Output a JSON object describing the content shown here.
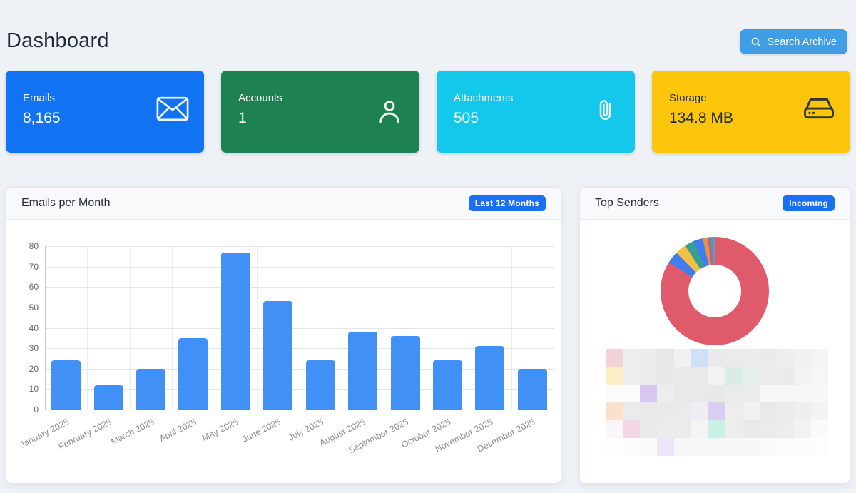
{
  "page": {
    "title": "Dashboard",
    "background": "#eef2f7"
  },
  "header": {
    "search_button": {
      "label": "Search Archive",
      "icon": "search-icon",
      "color": "#3f9ee6"
    }
  },
  "stat_cards": [
    {
      "label": "Emails",
      "value": "8,165",
      "icon": "envelope-icon",
      "bg": "#1173f2",
      "text": "#ffffff"
    },
    {
      "label": "Accounts",
      "value": "1",
      "icon": "person-icon",
      "bg": "#1e8152",
      "text": "#ffffff"
    },
    {
      "label": "Attachments",
      "value": "505",
      "icon": "paperclip-icon",
      "bg": "#13c8ea",
      "text": "#ffffff"
    },
    {
      "label": "Storage",
      "value": "134.8 MB",
      "icon": "drive-icon",
      "bg": "#fec60a",
      "text": "#212b36"
    }
  ],
  "emails_panel": {
    "title": "Emails per Month",
    "badge": "Last 12 Months",
    "badge_color": "#1a6ff2"
  },
  "senders_panel": {
    "title": "Top Senders",
    "badge": "Incoming",
    "badge_color": "#1a6ff2",
    "legend_mosaic": {
      "cols": 13,
      "rows": [
        [
          "#f2d1d7",
          "#ededee",
          "#ebebec",
          "#e7e7e9",
          "#f1f1f2",
          "#cfe0f7",
          "#eaeaec",
          "#ebebed",
          "#ebebed",
          "#eaeaeb",
          "#eeeeef",
          "#f1f1f2",
          "#f4f4f5"
        ],
        [
          "#fbedc4",
          "#ededed",
          "#ebebeb",
          "#e8e8ea",
          "#eaeaeb",
          "#e9e9ea",
          "#f2f2f2",
          "#d9ece7",
          "#e4efeb",
          "#ebebec",
          "#eaeaeb",
          "#f2f2f3",
          "#f6f6f6"
        ],
        [
          "#fbfbfb",
          "#fcfcfc",
          "#d8c8f1",
          "#ededee",
          "#e9e9ea",
          "#e9e9eb",
          "#e8e8ea",
          "#ebebec",
          "#ececec",
          "#f6f6f7",
          "#f6f6f7",
          "#f7f7f7",
          "#f8f8f8"
        ],
        [
          "#fde0c9",
          "#ebebeb",
          "#e9e9e9",
          "#eaeaeb",
          "#ebebec",
          "#efeef7",
          "#dbccf1",
          "#ededee",
          "#f1f1f1",
          "#e9e9ea",
          "#ececed",
          "#efeff0",
          "#f3f3f4"
        ],
        [
          "#faf5f7",
          "#f4d7e6",
          "#e9e9ea",
          "#ececec",
          "#ebebeb",
          "#f4f4f4",
          "#c9f0e5",
          "#ededee",
          "#e9e9ea",
          "#ebebec",
          "#ededee",
          "#f2f2f2",
          "#fafafa"
        ],
        [
          "#fdfdfd",
          "#fcfcfc",
          "#fafafa",
          "#eee5f9",
          "#f7f7f8",
          "#f8f8f8",
          "#f7f7f8",
          "#f8f8f8",
          "#f8f8f8",
          "#fafafa",
          "#fbfbfb",
          "#fcfcfc",
          "#fdfdfd"
        ]
      ]
    }
  },
  "chart_data": [
    {
      "type": "bar",
      "title": "Emails per Month",
      "categories": [
        "January 2025",
        "February 2025",
        "March 2025",
        "April 2025",
        "May 2025",
        "June 2025",
        "July 2025",
        "August 2025",
        "September 2025",
        "October 2025",
        "November 2025",
        "December 2025"
      ],
      "values": [
        24,
        12,
        20,
        35,
        77,
        53,
        24,
        38,
        36,
        24,
        31,
        20
      ],
      "xlabel": "",
      "ylabel": "",
      "ylim": [
        0,
        80
      ],
      "yticks": [
        0,
        10,
        20,
        30,
        40,
        50,
        60,
        70,
        80
      ],
      "grid": true,
      "bar_color": "#4190f5",
      "legend_position": "none"
    },
    {
      "type": "pie",
      "title": "Top Senders",
      "donut": true,
      "legend_position": "bottom-blurred",
      "segments": [
        {
          "color": "#df5a6b",
          "percent": 83.9
        },
        {
          "color": "#3e7ef0",
          "percent": 3.6
        },
        {
          "color": "#f2c143",
          "percent": 3.3
        },
        {
          "color": "#389e8e",
          "percent": 2.8
        },
        {
          "color": "#3e7ef0",
          "percent": 2.8
        },
        {
          "color": "#e2943e",
          "percent": 1.5
        },
        {
          "color": "#ce4f92",
          "percent": 0.8
        },
        {
          "color": "#3fa3a3",
          "percent": 0.7
        },
        {
          "color": "#7b8fc4",
          "percent": 0.6
        }
      ]
    }
  ]
}
